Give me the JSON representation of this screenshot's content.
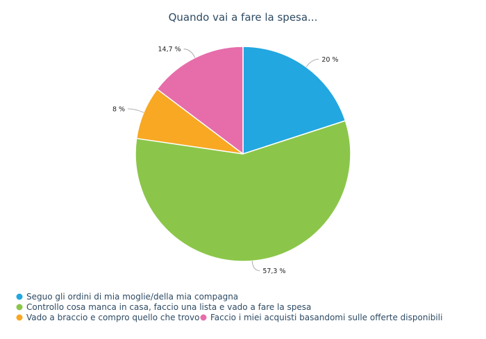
{
  "chart_data": {
    "type": "pie",
    "title": "Quando vai a fare la spesa...",
    "slices": [
      {
        "label": "Seguo gli ordini di mia moglie/della mia compagna",
        "value": 20,
        "display": "20 %",
        "color": "#22a7e0"
      },
      {
        "label": "Controllo cosa manca in casa, faccio una lista e vado a fare la spesa",
        "value": 57.3,
        "display": "57,3 %",
        "color": "#8bc64a"
      },
      {
        "label": "Vado a braccio e compro quello che trovo",
        "value": 8,
        "display": "8 %",
        "color": "#f8a823"
      },
      {
        "label": "Faccio i miei acquisti basandomi sulle offerte disponibili",
        "value": 14.7,
        "display": "14,7 %",
        "color": "#e66daa"
      }
    ],
    "legend_position": "bottom-left"
  }
}
